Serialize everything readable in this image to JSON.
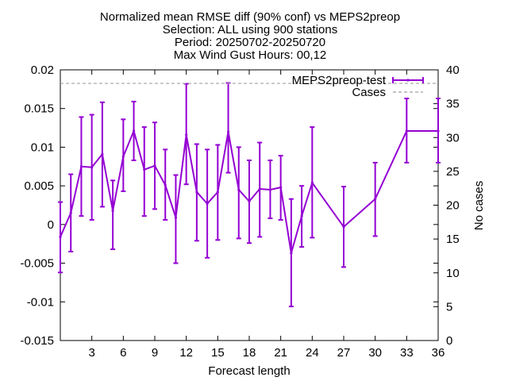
{
  "chart_data": {
    "type": "line",
    "title_lines": [
      "Normalized mean RMSE diff (90% conf) vs MEPS2preop",
      "Selection: ALL using   900 stations",
      "Period: 20250702-20250720",
      "Max Wind Gust   Hours: 00,12"
    ],
    "xlabel": "Forecast length",
    "ylabel": "",
    "y2label": "No cases",
    "xlim": [
      0,
      36
    ],
    "ylim": [
      -0.015,
      0.02
    ],
    "y2lim": [
      0,
      40
    ],
    "x_ticks": [
      3,
      6,
      9,
      12,
      15,
      18,
      21,
      24,
      27,
      30,
      33,
      36
    ],
    "y_ticks": [
      -0.015,
      -0.01,
      -0.005,
      0,
      0.005,
      0.01,
      0.015,
      0.02
    ],
    "y_tick_labels": [
      "-0.015",
      "-0.01",
      "-0.005",
      "0",
      "0.005",
      "0.01",
      "0.015",
      "0.02"
    ],
    "y2_ticks": [
      0,
      5,
      10,
      15,
      20,
      25,
      30,
      35,
      40
    ],
    "y2_tick_labels": [
      "0",
      "5",
      "10",
      "15",
      "20",
      "25",
      "30",
      "35",
      "40"
    ],
    "grid": false,
    "legend_position": "top-right",
    "series": [
      {
        "name": "MEPS2preop-test",
        "color": "#9400d3",
        "style": "line-errorbars",
        "x": [
          0,
          1,
          2,
          3,
          4,
          5,
          6,
          7,
          8,
          9,
          10,
          11,
          12,
          13,
          14,
          15,
          16,
          17,
          18,
          19,
          20,
          21,
          22,
          23,
          24,
          27,
          30,
          33,
          36
        ],
        "y": [
          -0.0016,
          0.0015,
          0.0075,
          0.0074,
          0.0091,
          0.0018,
          0.0088,
          0.0121,
          0.0071,
          0.0076,
          0.0051,
          0.0009,
          0.0116,
          0.0042,
          0.0027,
          0.0042,
          0.012,
          0.0045,
          0.003,
          0.0046,
          0.0045,
          0.0048,
          -0.0037,
          0.0011,
          0.0054,
          -0.0003,
          0.0033,
          0.0121,
          0.0121
        ],
        "y_low": [
          -0.0062,
          -0.0035,
          0.0011,
          0.0006,
          0.0023,
          -0.0032,
          0.0043,
          0.0083,
          0.0011,
          0.002,
          0.0006,
          -0.005,
          0.0052,
          -0.0021,
          -0.0043,
          -0.002,
          0.0067,
          -0.0018,
          -0.0024,
          -0.0016,
          0.0008,
          0.0006,
          -0.0106,
          -0.0029,
          -0.0017,
          -0.0055,
          -0.0015,
          0.008,
          0.008
        ],
        "y_high": [
          0.0029,
          0.0065,
          0.0139,
          0.0142,
          0.0158,
          0.0057,
          0.0136,
          0.0159,
          0.0126,
          0.0132,
          0.0097,
          0.0064,
          0.0182,
          0.0104,
          0.0097,
          0.0103,
          0.0183,
          0.01,
          0.0083,
          0.0106,
          0.0083,
          0.0089,
          0.0033,
          0.005,
          0.0126,
          0.0049,
          0.008,
          0.0163,
          0.0163
        ]
      },
      {
        "name": "Cases",
        "color": "#a0a0a0",
        "style": "dashed",
        "axis": "y2",
        "x": [
          0,
          36
        ],
        "y": [
          38,
          38
        ]
      }
    ]
  }
}
